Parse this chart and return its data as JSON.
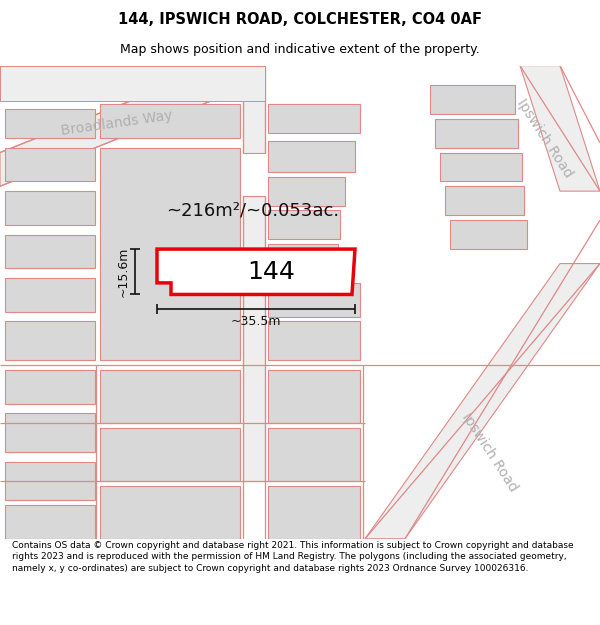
{
  "title": "144, IPSWICH ROAD, COLCHESTER, CO4 0AF",
  "subtitle": "Map shows position and indicative extent of the property.",
  "footer": "Contains OS data © Crown copyright and database right 2021. This information is subject to Crown copyright and database rights 2023 and is reproduced with the permission of HM Land Registry. The polygons (including the associated geometry, namely x, y co-ordinates) are subject to Crown copyright and database rights 2023 Ordnance Survey 100026316.",
  "area_label": "~216m²/~0.053ac.",
  "width_label": "~35.5m",
  "height_label": "~15.6m",
  "property_number": "144",
  "bg_color": "#ffffff",
  "building_fill": "#d8d8d8",
  "highlight_color": "#e8000a",
  "road_line_color": "#e08888",
  "road_label_color": "#b0b0b0",
  "title_color": "#000000",
  "footer_color": "#000000",
  "title_fontsize": 10.5,
  "subtitle_fontsize": 9,
  "footer_fontsize": 6.5,
  "area_fontsize": 13,
  "dim_fontsize": 9,
  "label_fontsize": 10,
  "number_fontsize": 18
}
